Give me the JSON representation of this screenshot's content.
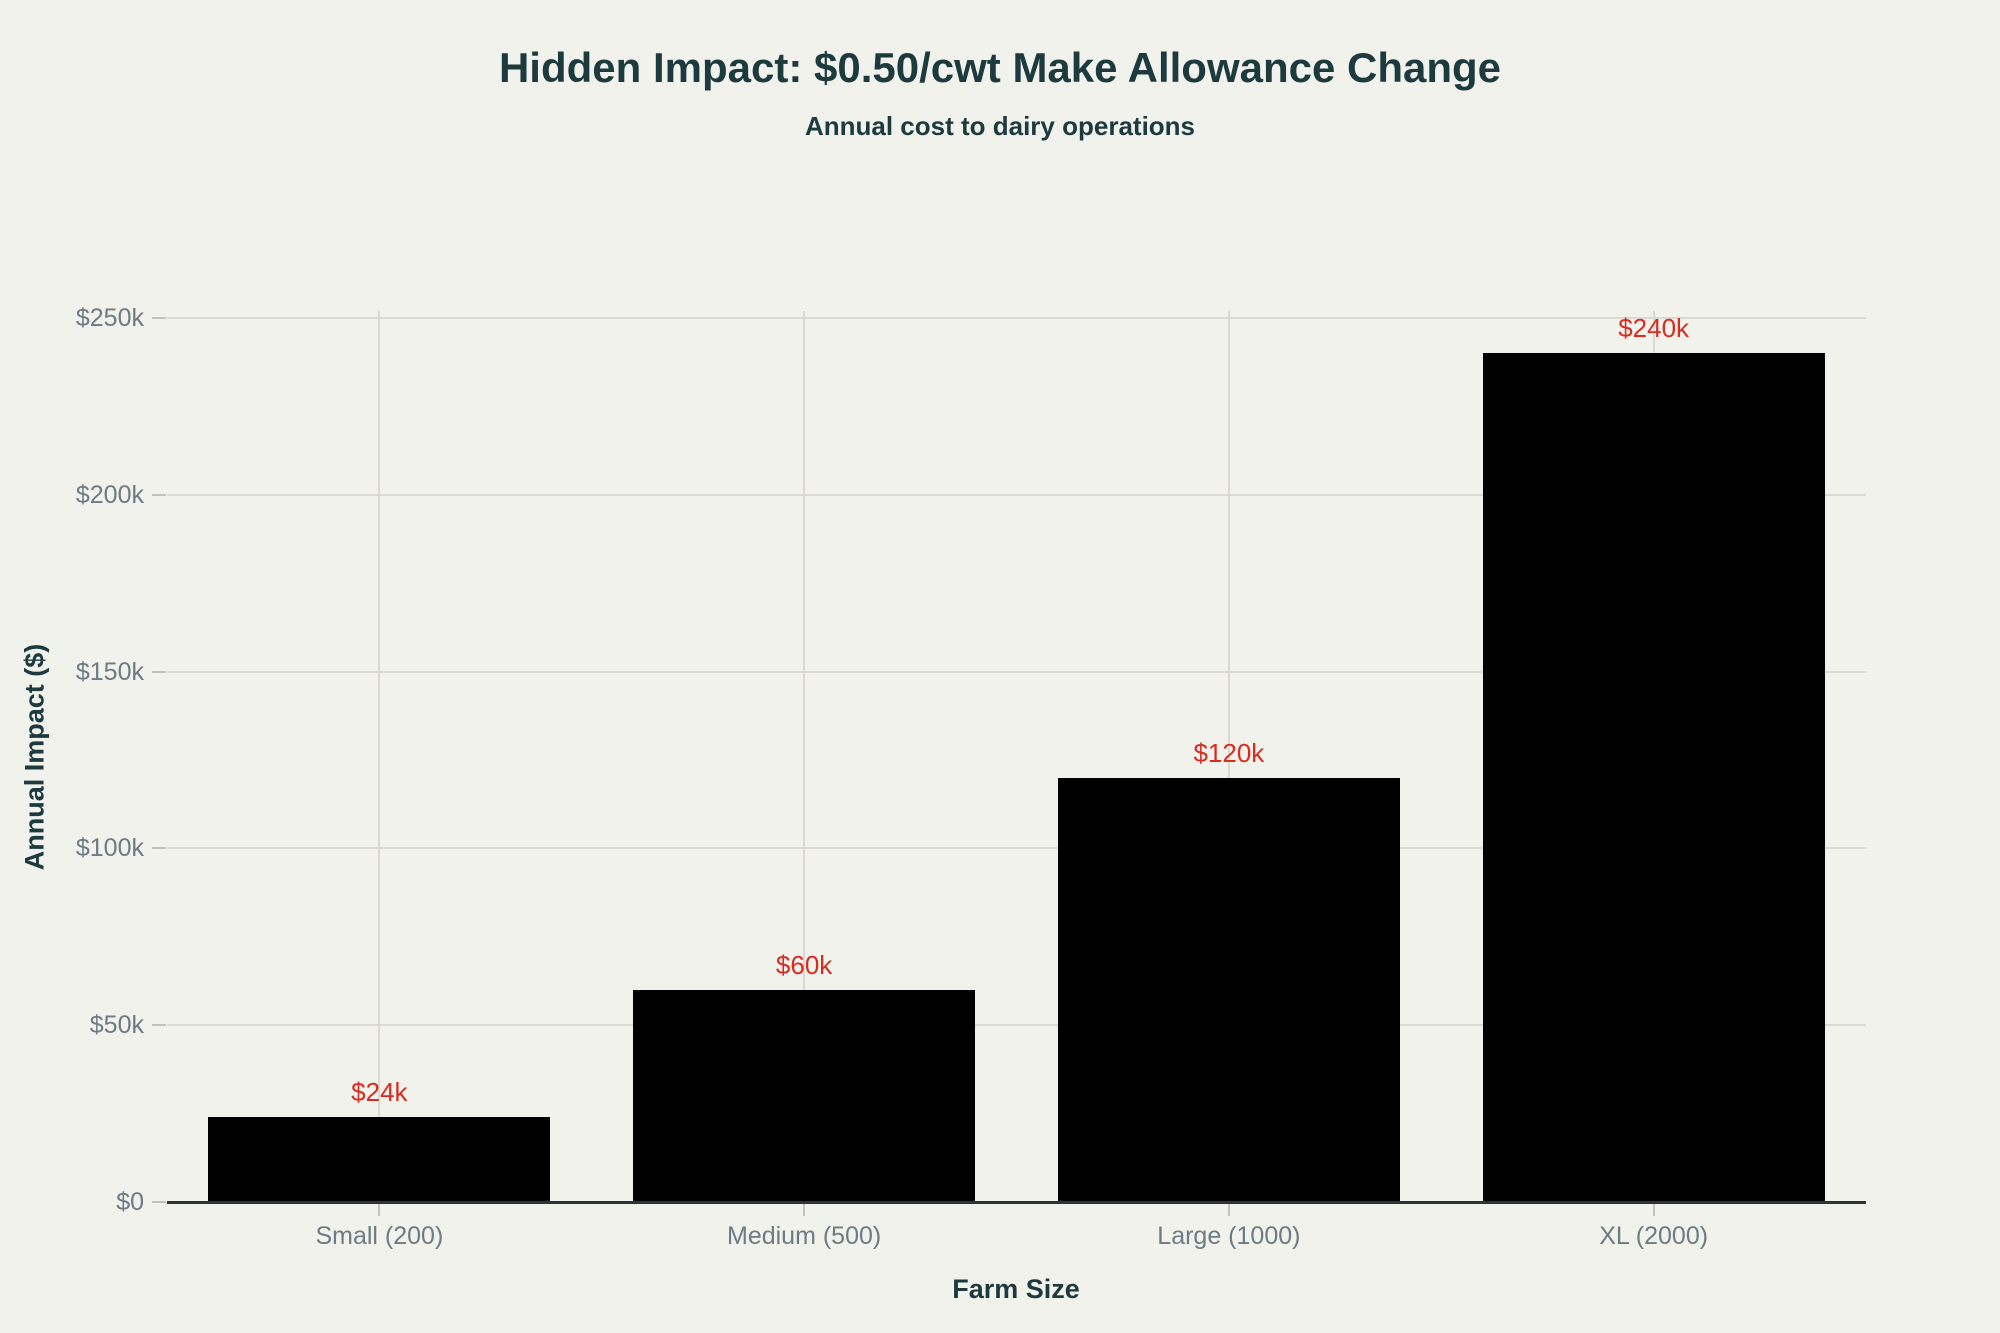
{
  "chart_data": {
    "type": "bar",
    "title": "Hidden Impact: $0.50/cwt Make Allowance Change",
    "subtitle": "Annual cost to dairy operations",
    "xlabel": "Farm Size",
    "ylabel": "Annual Impact ($)",
    "categories": [
      "Small (200)",
      "Medium (500)",
      "Large (1000)",
      "XL (2000)"
    ],
    "values": [
      24000,
      60000,
      120000,
      240000
    ],
    "value_labels": [
      "$24k",
      "$60k",
      "$120k",
      "$240k"
    ],
    "yticks": [
      {
        "value": 0,
        "label": "$0"
      },
      {
        "value": 50000,
        "label": "$50k"
      },
      {
        "value": 100000,
        "label": "$100k"
      },
      {
        "value": 150000,
        "label": "$150k"
      },
      {
        "value": 200000,
        "label": "$200k"
      },
      {
        "value": 250000,
        "label": "$250k"
      }
    ],
    "ylim": [
      0,
      252000
    ],
    "grid": "horizontal and vertical light gridlines, no top/right/left spine, dark bottom spine",
    "legend": "none",
    "colors": {
      "background": "#f1f2ec",
      "bar": "#000000",
      "value_label": "#d92b20",
      "tick_text": "#6e7b84",
      "heading_text": "#1d3a3e",
      "gridline": "#dbd9d1",
      "tick_mark": "#c2c2ba",
      "axis_line": "#2e3338"
    }
  }
}
